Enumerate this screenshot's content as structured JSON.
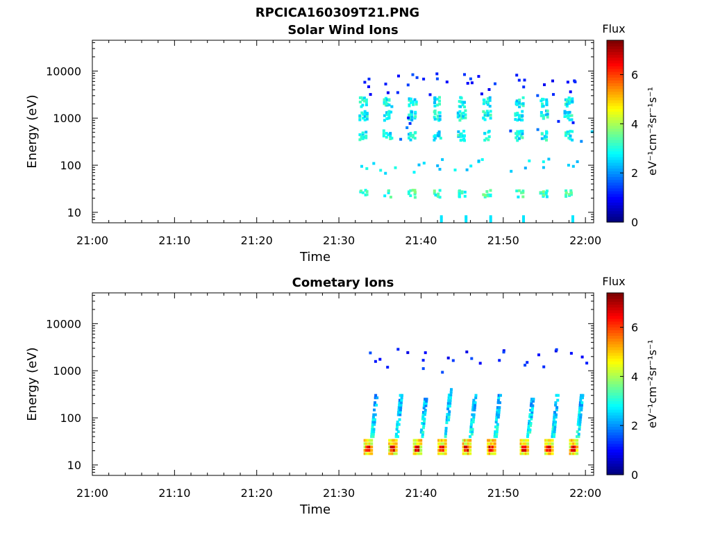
{
  "figure_title": "RPCICA160309T21.PNG",
  "chart_data": [
    {
      "type": "heatmap",
      "title": "Solar Wind Ions",
      "xlabel": "Time",
      "ylabel": "Energy (eV)",
      "xlim": [
        "21:00",
        "22:01"
      ],
      "xticks": [
        "21:00",
        "21:10",
        "21:20",
        "21:30",
        "21:40",
        "21:50",
        "22:00"
      ],
      "yscale": "log",
      "ylim": [
        6,
        45000
      ],
      "yticks": [
        "10",
        "100",
        "1000",
        "10000"
      ],
      "colorbar": {
        "title": "Flux",
        "label": "eV⁻¹cm⁻²sr⁻¹s⁻¹",
        "range": [
          0,
          7.4
        ],
        "ticks": [
          "0",
          "2",
          "4",
          "6"
        ],
        "colormap": "jet"
      },
      "data_start": "21:32",
      "clusters": [
        {
          "time": "21:33",
          "bands_eV": [
            2300,
            1200,
            450,
            26
          ]
        },
        {
          "time": "21:36",
          "bands_eV": [
            2300,
            1200,
            450,
            26
          ]
        },
        {
          "time": "21:39",
          "bands_eV": [
            2300,
            1200,
            450,
            26
          ]
        },
        {
          "time": "21:42",
          "bands_eV": [
            2300,
            1200,
            450,
            26
          ]
        },
        {
          "time": "21:45",
          "bands_eV": [
            2300,
            1200,
            450,
            26
          ]
        },
        {
          "time": "21:48",
          "bands_eV": [
            2300,
            1200,
            450,
            26
          ]
        },
        {
          "time": "21:52",
          "bands_eV": [
            2300,
            1200,
            450,
            26
          ]
        },
        {
          "time": "21:55",
          "bands_eV": [
            2300,
            1200,
            450,
            26
          ]
        },
        {
          "time": "21:58",
          "bands_eV": [
            2300,
            1200,
            450,
            26
          ]
        }
      ],
      "peak_flux": 3.5
    },
    {
      "type": "heatmap",
      "title": "Cometary Ions",
      "xlabel": "Time",
      "ylabel": "Energy (eV)",
      "xlim": [
        "21:00",
        "22:01"
      ],
      "xticks": [
        "21:00",
        "21:10",
        "21:20",
        "21:30",
        "21:40",
        "21:50",
        "22:00"
      ],
      "yscale": "log",
      "ylim": [
        6,
        45000
      ],
      "yticks": [
        "10",
        "100",
        "1000",
        "10000"
      ],
      "colorbar": {
        "title": "Flux",
        "label": "eV⁻¹cm⁻²sr⁻¹s⁻¹",
        "range": [
          0,
          7.4
        ],
        "ticks": [
          "0",
          "2",
          "4",
          "6"
        ],
        "colormap": "jet"
      },
      "data_start": "21:32",
      "clusters": [
        {
          "time": "21:34",
          "core_eV": 24,
          "plume_top_eV": 300
        },
        {
          "time": "21:37",
          "core_eV": 24,
          "plume_top_eV": 300
        },
        {
          "time": "21:40",
          "core_eV": 24,
          "plume_top_eV": 250
        },
        {
          "time": "21:43",
          "core_eV": 24,
          "plume_top_eV": 400
        },
        {
          "time": "21:46",
          "core_eV": 24,
          "plume_top_eV": 300
        },
        {
          "time": "21:49",
          "core_eV": 24,
          "plume_top_eV": 300
        },
        {
          "time": "21:53",
          "core_eV": 24,
          "plume_top_eV": 250
        },
        {
          "time": "21:56",
          "core_eV": 24,
          "plume_top_eV": 300
        },
        {
          "time": "21:59",
          "core_eV": 24,
          "plume_top_eV": 300
        }
      ],
      "peak_flux": 7.0
    }
  ]
}
